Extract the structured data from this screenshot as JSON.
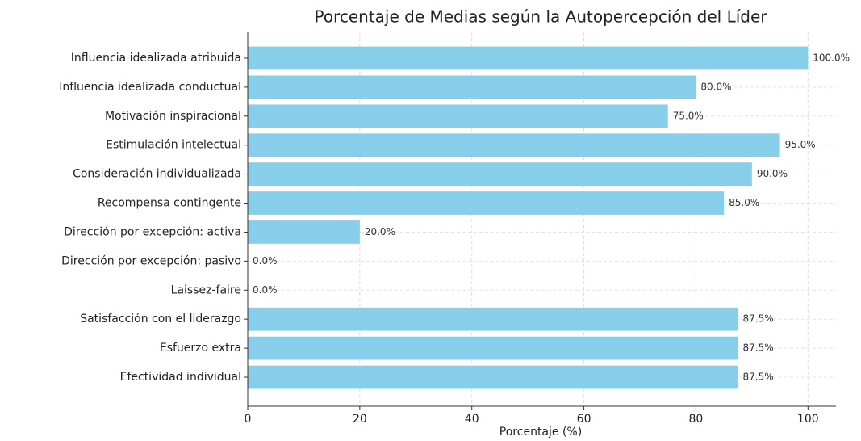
{
  "chart_data": {
    "type": "barh",
    "title": "Porcentaje de Medias según la Autopercepción del Líder",
    "xlabel": "Porcentaje (%)",
    "categories": [
      "Influencia idealizada atribuida",
      "Influencia idealizada conductual",
      "Motivación inspiracional",
      "Estimulación intelectual",
      "Consideración individualizada",
      "Recompensa contingente",
      "Dirección por excepción: activa",
      "Dirección por excepción: pasivo",
      "Laissez-faire",
      "Satisfacción con el liderazgo",
      "Esfuerzo extra",
      "Efectividad individual"
    ],
    "values": [
      100,
      80,
      75,
      95,
      90,
      85,
      20,
      0,
      0,
      87.5,
      87.5,
      87.5
    ],
    "value_labels": [
      "100.0%",
      "80.0%",
      "75.0%",
      "95.0%",
      "90.0%",
      "85.0%",
      "20.0%",
      "0.0%",
      "0.0%",
      "87.5%",
      "87.5%",
      "87.5%"
    ],
    "color": "#87ceeb",
    "xlim": [
      0,
      105
    ],
    "xticks": [
      0,
      20,
      40,
      60,
      80,
      100
    ],
    "grid": true
  }
}
